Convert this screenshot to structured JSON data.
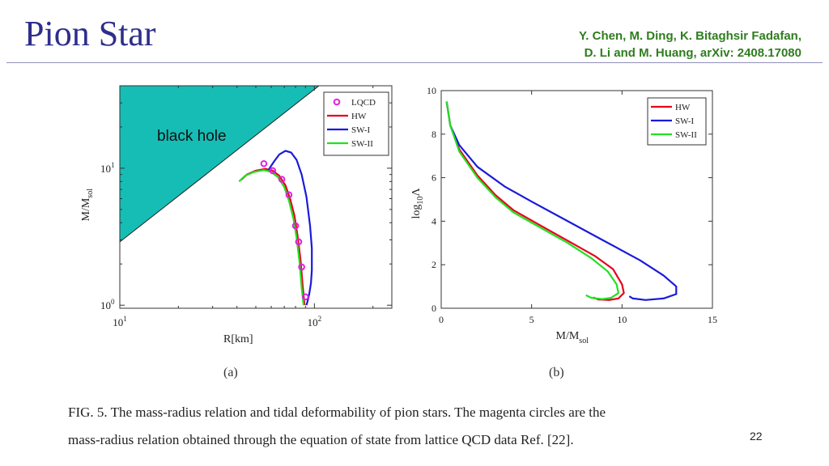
{
  "slide": {
    "title": "Pion Star",
    "authors_line1": "Y. Chen, M. Ding, K. Bitaghsir Fadafan,",
    "authors_line2": "D. Li and M. Huang, arXiv: 2408.17080",
    "page_number": "22",
    "caption_line1": "FIG. 5. The mass-radius relation and tidal deformability of pion stars. The magenta circles are the",
    "caption_line2": "mass-radius relation obtained through the equation of state from lattice QCD data Ref. [22]."
  },
  "colors": {
    "title": "#2e2e8c",
    "authors": "#2f7d1f",
    "black_hole_fill": "#16bdb5",
    "HW": "#e8001c",
    "SW-I": "#1a1adc",
    "SW-II": "#22e022",
    "LQCD": "#e020e0"
  },
  "chart_data": [
    {
      "type": "line",
      "panel_label": "(a)",
      "xlabel": "R[km]",
      "ylabel": "M/M",
      "ylabel_sub": "sol",
      "xscale": "log",
      "yscale": "log",
      "xlim": [
        10,
        250
      ],
      "ylim": [
        0.95,
        40
      ],
      "xticks": [
        {
          "value": 10,
          "base": "10",
          "exp": "1"
        },
        {
          "value": 100,
          "base": "10",
          "exp": "2"
        }
      ],
      "yticks": [
        {
          "value": 1,
          "base": "10",
          "exp": "0"
        },
        {
          "value": 10,
          "base": "10",
          "exp": "1"
        }
      ],
      "region_label": "black hole",
      "legend_position": "top-right",
      "legend": [
        "LQCD",
        "HW",
        "SW-I",
        "SW-II"
      ],
      "series": [
        {
          "name": "HW",
          "style": "line",
          "color": "#e8001c",
          "x": [
            42,
            45,
            50,
            56,
            61,
            66,
            71,
            75,
            79,
            82,
            85,
            87,
            89
          ],
          "y": [
            8.2,
            9.0,
            9.6,
            9.9,
            9.6,
            8.8,
            7.5,
            6.0,
            4.5,
            3.2,
            2.1,
            1.4,
            1.0
          ]
        },
        {
          "name": "SW-I",
          "style": "line",
          "color": "#1a1adc",
          "x": [
            58,
            62,
            66,
            71,
            76,
            81,
            86,
            91,
            95,
            97,
            97,
            96,
            94,
            92,
            91
          ],
          "y": [
            9.7,
            11.2,
            12.6,
            13.4,
            13.0,
            11.5,
            9.0,
            6.2,
            3.8,
            2.6,
            1.8,
            1.45,
            1.2,
            1.05,
            1.0
          ]
        },
        {
          "name": "SW-II",
          "style": "line",
          "color": "#22e022",
          "x": [
            41,
            44,
            49,
            55,
            60,
            65,
            70,
            74,
            78,
            81,
            84,
            86,
            88
          ],
          "y": [
            8.0,
            8.8,
            9.4,
            9.7,
            9.4,
            8.6,
            7.3,
            5.8,
            4.3,
            3.1,
            2.0,
            1.35,
            1.0
          ]
        },
        {
          "name": "LQCD",
          "style": "markers",
          "color": "#e020e0",
          "x": [
            55,
            61,
            68,
            74,
            80,
            83,
            86,
            90
          ],
          "y": [
            10.8,
            9.6,
            8.3,
            6.4,
            3.8,
            2.9,
            1.9,
            1.15
          ]
        }
      ]
    },
    {
      "type": "line",
      "panel_label": "(b)",
      "xlabel": "M/M",
      "xlabel_sub": "sol",
      "ylabel": "log",
      "ylabel_sub": "10",
      "ylabel_suffix": "Λ",
      "xlim": [
        0,
        15
      ],
      "ylim": [
        0,
        10
      ],
      "xticks": [
        0,
        5,
        10,
        15
      ],
      "yticks": [
        0,
        2,
        4,
        6,
        8,
        10
      ],
      "legend_position": "top-right",
      "legend": [
        "HW",
        "SW-I",
        "SW-II"
      ],
      "series": [
        {
          "name": "HW",
          "color": "#e8001c",
          "x": [
            0.3,
            0.5,
            1.0,
            2.0,
            3.0,
            4.0,
            5.5,
            7.0,
            8.5,
            9.5,
            10.0,
            10.1,
            9.8,
            9.3,
            8.7,
            8.4
          ],
          "y": [
            9.5,
            8.4,
            7.3,
            6.1,
            5.2,
            4.5,
            3.8,
            3.1,
            2.4,
            1.8,
            1.1,
            0.7,
            0.45,
            0.38,
            0.4,
            0.5
          ]
        },
        {
          "name": "SW-I",
          "color": "#1a1adc",
          "x": [
            0.3,
            0.5,
            1.0,
            2.0,
            3.5,
            5.0,
            7.0,
            9.0,
            11.0,
            12.3,
            13.0,
            13.0,
            12.3,
            11.3,
            10.6,
            10.4
          ],
          "y": [
            9.5,
            8.4,
            7.5,
            6.5,
            5.6,
            4.9,
            4.0,
            3.1,
            2.2,
            1.5,
            1.0,
            0.65,
            0.45,
            0.38,
            0.45,
            0.55
          ]
        },
        {
          "name": "SW-II",
          "color": "#22e022",
          "x": [
            0.3,
            0.5,
            1.0,
            2.0,
            3.0,
            4.0,
            5.5,
            7.0,
            8.3,
            9.2,
            9.7,
            9.8,
            9.4,
            8.9,
            8.3,
            8.0
          ],
          "y": [
            9.5,
            8.4,
            7.2,
            6.0,
            5.1,
            4.4,
            3.7,
            3.0,
            2.3,
            1.7,
            1.1,
            0.7,
            0.48,
            0.42,
            0.48,
            0.6
          ]
        }
      ]
    }
  ]
}
